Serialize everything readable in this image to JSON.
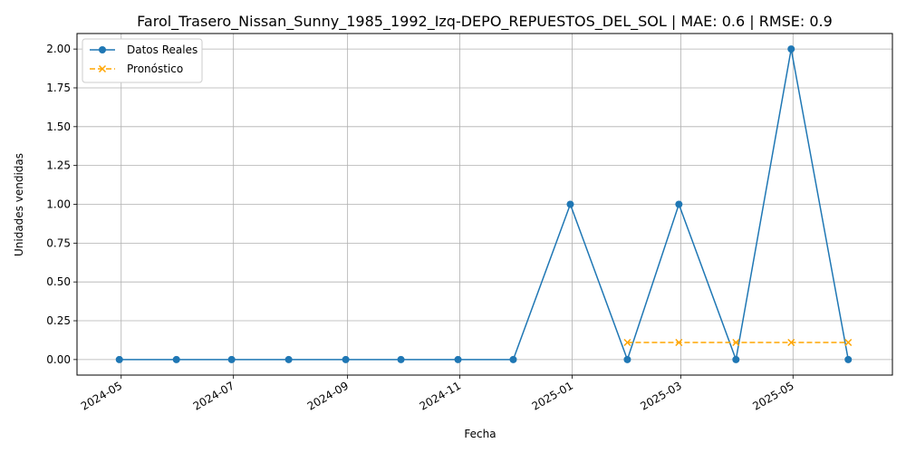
{
  "chart_data": {
    "type": "line",
    "title": "Farol_Trasero_Nissan_Sunny_1985_1992_Izq-DEPO_REPUESTOS_DEL_SOL | MAE: 0.6 | RMSE: 0.9",
    "xlabel": "Fecha",
    "ylabel": "Unidades vendidas",
    "x_ticks": [
      "2024-05",
      "2024-07",
      "2024-09",
      "2024-11",
      "2025-01",
      "2025-03",
      "2025-05"
    ],
    "y_ticks": [
      "0.00",
      "0.25",
      "0.50",
      "0.75",
      "1.00",
      "1.25",
      "1.50",
      "1.75",
      "2.00"
    ],
    "ylim": [
      -0.1,
      2.1
    ],
    "xlim": [
      "2024-04-07",
      "2025-06-24"
    ],
    "grid": true,
    "legend_position": "top-left",
    "series": [
      {
        "name": "Datos Reales",
        "color": "#1f77b4",
        "style": "solid",
        "marker": "circle",
        "x": [
          "2024-04-30",
          "2024-05-31",
          "2024-06-30",
          "2024-07-31",
          "2024-08-31",
          "2024-09-30",
          "2024-10-31",
          "2024-11-30",
          "2024-12-31",
          "2025-01-31",
          "2025-02-28",
          "2025-03-31",
          "2025-04-30",
          "2025-05-31"
        ],
        "values": [
          0,
          0,
          0,
          0,
          0,
          0,
          0,
          0,
          1,
          0,
          1,
          0,
          2,
          0
        ]
      },
      {
        "name": "Pronóstico",
        "color": "#ffa500",
        "style": "dashed",
        "marker": "x",
        "x": [
          "2025-01-31",
          "2025-02-28",
          "2025-03-31",
          "2025-04-30",
          "2025-05-31"
        ],
        "values": [
          0.11,
          0.11,
          0.11,
          0.11,
          0.11
        ]
      }
    ]
  }
}
